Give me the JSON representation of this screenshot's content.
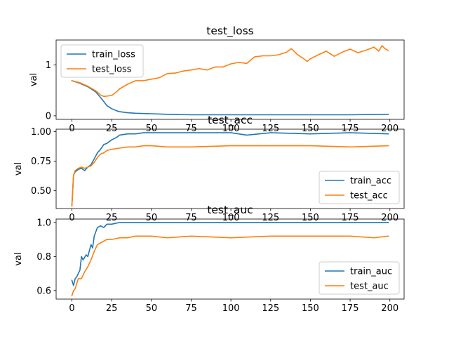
{
  "chart_data": [
    {
      "type": "line",
      "title": "test_loss",
      "xlabel": "",
      "ylabel": "val",
      "xlim": [
        -9.95,
        208.95
      ],
      "ylim": [
        -0.07,
        1.49
      ],
      "xticks": [
        0,
        25,
        50,
        75,
        100,
        125,
        150,
        175,
        200
      ],
      "yticks": [
        0,
        1
      ],
      "legend_position": "upper-left",
      "series": [
        {
          "name": "train_loss",
          "color": "#1f77b4",
          "points": [
            [
              0,
              0.69
            ],
            [
              5,
              0.64
            ],
            [
              10,
              0.57
            ],
            [
              15,
              0.47
            ],
            [
              18,
              0.36
            ],
            [
              20,
              0.28
            ],
            [
              22,
              0.2
            ],
            [
              25,
              0.14
            ],
            [
              28,
              0.1
            ],
            [
              30,
              0.08
            ],
            [
              35,
              0.06
            ],
            [
              40,
              0.05
            ],
            [
              50,
              0.04
            ],
            [
              60,
              0.03
            ],
            [
              75,
              0.02
            ],
            [
              100,
              0.02
            ],
            [
              125,
              0.02
            ],
            [
              150,
              0.02
            ],
            [
              175,
              0.02
            ],
            [
              199,
              0.03
            ]
          ]
        },
        {
          "name": "test_loss",
          "color": "#ff7f0e",
          "points": [
            [
              0,
              0.69
            ],
            [
              5,
              0.65
            ],
            [
              10,
              0.58
            ],
            [
              15,
              0.49
            ],
            [
              18,
              0.41
            ],
            [
              20,
              0.38
            ],
            [
              25,
              0.4
            ],
            [
              28,
              0.47
            ],
            [
              30,
              0.53
            ],
            [
              35,
              0.62
            ],
            [
              40,
              0.69
            ],
            [
              45,
              0.69
            ],
            [
              50,
              0.72
            ],
            [
              55,
              0.75
            ],
            [
              60,
              0.83
            ],
            [
              65,
              0.84
            ],
            [
              70,
              0.88
            ],
            [
              75,
              0.9
            ],
            [
              80,
              0.93
            ],
            [
              85,
              0.9
            ],
            [
              90,
              0.96
            ],
            [
              95,
              0.96
            ],
            [
              100,
              1.02
            ],
            [
              105,
              1.05
            ],
            [
              110,
              1.03
            ],
            [
              115,
              1.16
            ],
            [
              120,
              1.18
            ],
            [
              125,
              1.18
            ],
            [
              130,
              1.2
            ],
            [
              135,
              1.25
            ],
            [
              138,
              1.32
            ],
            [
              142,
              1.2
            ],
            [
              145,
              1.14
            ],
            [
              148,
              1.07
            ],
            [
              150,
              1.12
            ],
            [
              155,
              1.2
            ],
            [
              160,
              1.27
            ],
            [
              165,
              1.17
            ],
            [
              170,
              1.25
            ],
            [
              175,
              1.31
            ],
            [
              180,
              1.24
            ],
            [
              185,
              1.29
            ],
            [
              190,
              1.35
            ],
            [
              193,
              1.27
            ],
            [
              195,
              1.38
            ],
            [
              197,
              1.32
            ],
            [
              199,
              1.28
            ]
          ]
        }
      ]
    },
    {
      "type": "line",
      "title": "test_acc",
      "xlabel": "",
      "ylabel": "val",
      "xlim": [
        -9.95,
        208.95
      ],
      "ylim": [
        0.35,
        1.02
      ],
      "xticks": [
        0,
        25,
        50,
        75,
        100,
        125,
        150,
        175,
        200
      ],
      "yticks": [
        0.5,
        0.75,
        1.0
      ],
      "legend_position": "lower-right",
      "series": [
        {
          "name": "train_acc",
          "color": "#1f77b4",
          "points": [
            [
              0,
              0.38
            ],
            [
              1,
              0.63
            ],
            [
              2,
              0.66
            ],
            [
              4,
              0.68
            ],
            [
              6,
              0.69
            ],
            [
              8,
              0.67
            ],
            [
              10,
              0.7
            ],
            [
              12,
              0.72
            ],
            [
              14,
              0.77
            ],
            [
              16,
              0.82
            ],
            [
              18,
              0.85
            ],
            [
              20,
              0.89
            ],
            [
              22,
              0.9
            ],
            [
              25,
              0.93
            ],
            [
              28,
              0.95
            ],
            [
              30,
              0.97
            ],
            [
              35,
              0.98
            ],
            [
              40,
              0.98
            ],
            [
              45,
              0.99
            ],
            [
              50,
              0.99
            ],
            [
              60,
              0.99
            ],
            [
              75,
              0.99
            ],
            [
              100,
              0.99
            ],
            [
              110,
              0.97
            ],
            [
              125,
              0.99
            ],
            [
              150,
              0.98
            ],
            [
              175,
              0.99
            ],
            [
              199,
              0.98
            ]
          ]
        },
        {
          "name": "test_acc",
          "color": "#ff7f0e",
          "points": [
            [
              0,
              0.37
            ],
            [
              1,
              0.63
            ],
            [
              2,
              0.67
            ],
            [
              4,
              0.69
            ],
            [
              6,
              0.7
            ],
            [
              8,
              0.69
            ],
            [
              10,
              0.7
            ],
            [
              12,
              0.71
            ],
            [
              14,
              0.74
            ],
            [
              16,
              0.78
            ],
            [
              18,
              0.81
            ],
            [
              20,
              0.82
            ],
            [
              22,
              0.84
            ],
            [
              25,
              0.85
            ],
            [
              30,
              0.86
            ],
            [
              35,
              0.87
            ],
            [
              40,
              0.87
            ],
            [
              45,
              0.88
            ],
            [
              50,
              0.88
            ],
            [
              60,
              0.87
            ],
            [
              75,
              0.87
            ],
            [
              100,
              0.88
            ],
            [
              125,
              0.88
            ],
            [
              150,
              0.88
            ],
            [
              175,
              0.87
            ],
            [
              199,
              0.88
            ]
          ]
        }
      ]
    },
    {
      "type": "line",
      "title": "test_auc",
      "xlabel": "",
      "ylabel": "val",
      "xlim": [
        -9.95,
        208.95
      ],
      "ylim": [
        0.55,
        1.02
      ],
      "xticks": [
        0,
        25,
        50,
        75,
        100,
        125,
        150,
        175,
        200
      ],
      "yticks": [
        0.6,
        0.8,
        1.0
      ],
      "legend_position": "lower-right",
      "series": [
        {
          "name": "train_auc",
          "color": "#1f77b4",
          "points": [
            [
              0,
              0.66
            ],
            [
              1,
              0.63
            ],
            [
              2,
              0.67
            ],
            [
              3,
              0.68
            ],
            [
              5,
              0.72
            ],
            [
              6,
              0.8
            ],
            [
              7,
              0.78
            ],
            [
              9,
              0.81
            ],
            [
              10,
              0.8
            ],
            [
              12,
              0.87
            ],
            [
              13,
              0.85
            ],
            [
              14,
              0.92
            ],
            [
              16,
              0.97
            ],
            [
              18,
              0.98
            ],
            [
              20,
              0.97
            ],
            [
              22,
              0.99
            ],
            [
              25,
              0.99
            ],
            [
              30,
              1.0
            ],
            [
              40,
              1.0
            ],
            [
              50,
              1.0
            ],
            [
              75,
              1.0
            ],
            [
              100,
              1.0
            ],
            [
              125,
              1.0
            ],
            [
              150,
              1.0
            ],
            [
              175,
              1.0
            ],
            [
              199,
              1.0
            ]
          ]
        },
        {
          "name": "test_auc",
          "color": "#ff7f0e",
          "points": [
            [
              0,
              0.57
            ],
            [
              1,
              0.6
            ],
            [
              2,
              0.61
            ],
            [
              3,
              0.64
            ],
            [
              4,
              0.67
            ],
            [
              6,
              0.67
            ],
            [
              8,
              0.71
            ],
            [
              10,
              0.74
            ],
            [
              12,
              0.78
            ],
            [
              14,
              0.83
            ],
            [
              16,
              0.87
            ],
            [
              18,
              0.88
            ],
            [
              20,
              0.89
            ],
            [
              22,
              0.9
            ],
            [
              25,
              0.9
            ],
            [
              30,
              0.91
            ],
            [
              35,
              0.91
            ],
            [
              40,
              0.92
            ],
            [
              50,
              0.92
            ],
            [
              60,
              0.91
            ],
            [
              75,
              0.92
            ],
            [
              100,
              0.91
            ],
            [
              125,
              0.92
            ],
            [
              150,
              0.92
            ],
            [
              175,
              0.92
            ],
            [
              190,
              0.91
            ],
            [
              199,
              0.92
            ]
          ]
        }
      ]
    }
  ]
}
